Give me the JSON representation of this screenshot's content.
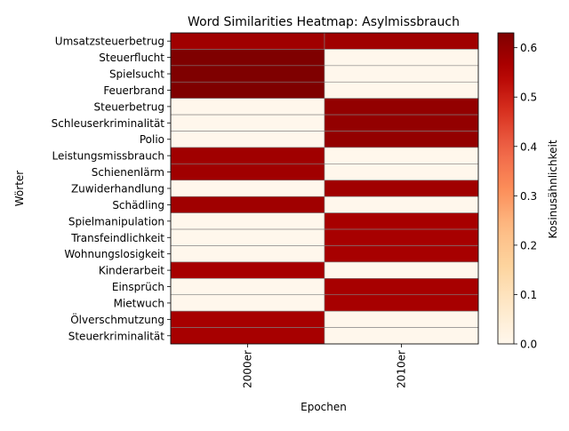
{
  "chart_data": {
    "type": "heatmap",
    "title": "Word Similarities Heatmap: Asylmissbrauch",
    "xlabel": "Epochen",
    "ylabel": "Wörter",
    "colorbar_label": "Kosinusähnlichkeit",
    "colormap": "OrRd",
    "vmin": 0.0,
    "vmax": 0.63,
    "colorbar_ticks": [
      "0.0",
      "0.1",
      "0.2",
      "0.3",
      "0.4",
      "0.5",
      "0.6"
    ],
    "colorbar_tick_values": [
      0.0,
      0.1,
      0.2,
      0.3,
      0.4,
      0.5,
      0.6
    ],
    "columns": [
      "2000er",
      "2010er"
    ],
    "rows": [
      {
        "word": "Umsatzsteuerbetrug",
        "values": [
          0.58,
          0.58
        ]
      },
      {
        "word": "Steuerflucht",
        "values": [
          0.63,
          0.0
        ]
      },
      {
        "word": "Spielsucht",
        "values": [
          0.63,
          0.0
        ]
      },
      {
        "word": "Feuerbrand",
        "values": [
          0.63,
          0.0
        ]
      },
      {
        "word": "Steuerbetrug",
        "values": [
          0.0,
          0.6
        ]
      },
      {
        "word": "Schleuserkriminalität",
        "values": [
          0.0,
          0.6
        ]
      },
      {
        "word": "Polio",
        "values": [
          0.0,
          0.6
        ]
      },
      {
        "word": "Leistungsmissbrauch",
        "values": [
          0.58,
          0.0
        ]
      },
      {
        "word": "Schienenlärm",
        "values": [
          0.58,
          0.0
        ]
      },
      {
        "word": "Zuwiderhandlung",
        "values": [
          0.0,
          0.58
        ]
      },
      {
        "word": "Schädling",
        "values": [
          0.58,
          0.0
        ]
      },
      {
        "word": "Spielmanipulation",
        "values": [
          0.0,
          0.57
        ]
      },
      {
        "word": "Transfeindlichkeit",
        "values": [
          0.0,
          0.57
        ]
      },
      {
        "word": "Wohnungslosigkeit",
        "values": [
          0.0,
          0.57
        ]
      },
      {
        "word": "Kinderarbeit",
        "values": [
          0.57,
          0.0
        ]
      },
      {
        "word": "Einsprüch",
        "values": [
          0.0,
          0.57
        ]
      },
      {
        "word": "Mietwuch",
        "values": [
          0.0,
          0.57
        ]
      },
      {
        "word": "Ölverschmutzung",
        "values": [
          0.57,
          0.0
        ]
      },
      {
        "word": "Steuerkriminalität",
        "values": [
          0.57,
          0.0
        ]
      }
    ]
  }
}
